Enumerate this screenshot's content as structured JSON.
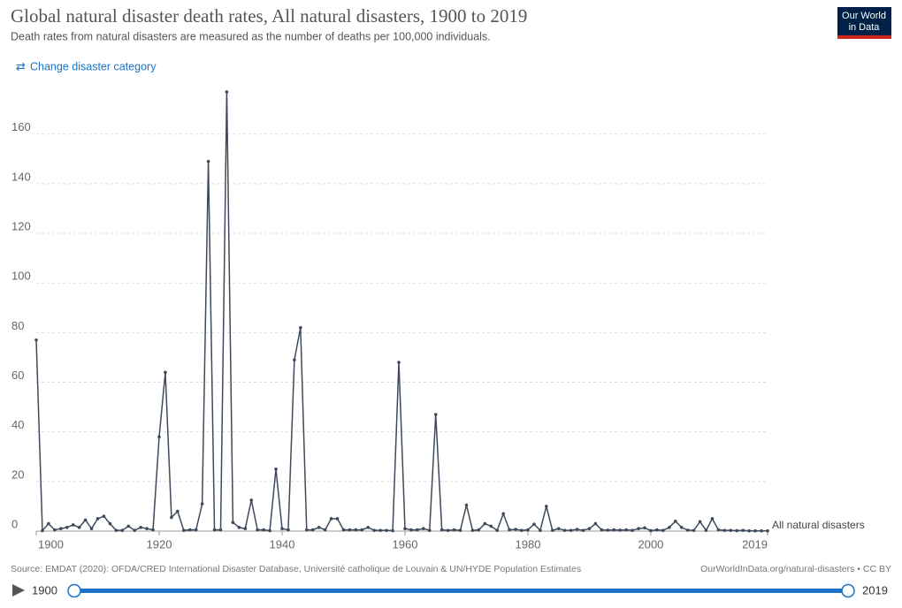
{
  "chart_data": {
    "type": "line",
    "title": "Global natural disaster death rates, All natural disasters, 1900 to 2019",
    "subtitle": "Death rates from natural disasters are measured as the number of deaths per 100,000 individuals.",
    "source": "Source: EMDAT (2020): OFDA/CRED International Disaster Database, Université catholique de Louvain & UN/HYDE Population Estimates",
    "license": "OurWorldInData.org/natural-disasters • CC BY",
    "x": [
      1900,
      1901,
      1902,
      1903,
      1904,
      1905,
      1906,
      1907,
      1908,
      1909,
      1910,
      1911,
      1912,
      1913,
      1914,
      1915,
      1916,
      1917,
      1918,
      1919,
      1920,
      1921,
      1922,
      1923,
      1924,
      1925,
      1926,
      1927,
      1928,
      1929,
      1930,
      1931,
      1932,
      1933,
      1934,
      1935,
      1936,
      1937,
      1938,
      1939,
      1940,
      1941,
      1942,
      1943,
      1944,
      1945,
      1946,
      1947,
      1948,
      1949,
      1950,
      1951,
      1952,
      1953,
      1954,
      1955,
      1956,
      1957,
      1958,
      1959,
      1960,
      1961,
      1962,
      1963,
      1964,
      1965,
      1966,
      1967,
      1968,
      1969,
      1970,
      1971,
      1972,
      1973,
      1974,
      1975,
      1976,
      1977,
      1978,
      1979,
      1980,
      1981,
      1982,
      1983,
      1984,
      1985,
      1986,
      1987,
      1988,
      1989,
      1990,
      1991,
      1992,
      1993,
      1994,
      1995,
      1996,
      1997,
      1998,
      1999,
      2000,
      2001,
      2002,
      2003,
      2004,
      2005,
      2006,
      2007,
      2008,
      2009,
      2010,
      2011,
      2012,
      2013,
      2014,
      2015,
      2016,
      2017,
      2018,
      2019
    ],
    "series": [
      {
        "name": "All natural disasters",
        "color": "#3e4a5c",
        "values": [
          77,
          0.2,
          3,
          0.5,
          1,
          1.5,
          2.5,
          1.5,
          4.5,
          1,
          5,
          6,
          3,
          0.3,
          0.3,
          2,
          0.3,
          1.5,
          1,
          0.5,
          38,
          64,
          5.5,
          8,
          0.3,
          0.5,
          0.5,
          11,
          149,
          0.5,
          0.5,
          177,
          3.5,
          1.5,
          1,
          12.5,
          0.5,
          0.5,
          0.2,
          25,
          1,
          0.5,
          69,
          82,
          0.5,
          0.5,
          1.5,
          0.5,
          5,
          5,
          0.5,
          0.5,
          0.5,
          0.5,
          1.5,
          0.3,
          0.3,
          0.3,
          0.2,
          68,
          1,
          0.5,
          0.5,
          1,
          0.3,
          47,
          0.5,
          0.3,
          0.5,
          0.3,
          10.5,
          0.3,
          0.5,
          3,
          2,
          0.3,
          7,
          0.5,
          0.7,
          0.3,
          0.5,
          2.8,
          0.3,
          10,
          0.3,
          1,
          0.3,
          0.3,
          0.7,
          0.3,
          1,
          3,
          0.5,
          0.4,
          0.5,
          0.4,
          0.5,
          0.3,
          1,
          1.3,
          0.2,
          0.5,
          0.3,
          1.5,
          4,
          1.5,
          0.4,
          0.3,
          3.8,
          0.3,
          5,
          0.5,
          0.3,
          0.3,
          0.2,
          0.3,
          0.1,
          0.1,
          0.1,
          0.1
        ]
      }
    ],
    "xlim": [
      1900,
      2019
    ],
    "xticks": [
      1900,
      1920,
      1940,
      1960,
      1980,
      2000,
      2019
    ],
    "ylim": [
      0,
      177
    ],
    "yticks": [
      0,
      20,
      40,
      60,
      80,
      100,
      120,
      140,
      160
    ],
    "grid": true
  },
  "logo": [
    "Our World",
    "in Data"
  ],
  "control": "Change disaster category",
  "timeline": {
    "start": 1900,
    "end": 2019
  }
}
